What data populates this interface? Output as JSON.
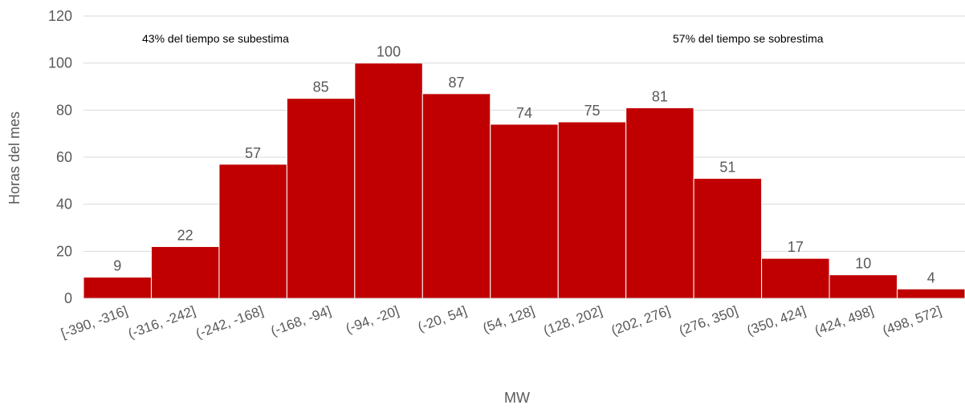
{
  "chart_data": {
    "type": "bar",
    "title": "",
    "xlabel": "MW",
    "ylabel": "Horas del mes",
    "ylim": [
      0,
      120
    ],
    "ytick_step": 20,
    "categories": [
      "[-390, -316]",
      "(-316, -242]",
      "(-242, -168]",
      "(-168, -94]",
      "(-94, -20]",
      "(-20, 54]",
      "(54, 128]",
      "(128, 202]",
      "(202, 276]",
      "(276, 350]",
      "(350, 424]",
      "(424, 498]",
      "(498, 572]"
    ],
    "values": [
      9,
      22,
      57,
      85,
      100,
      87,
      74,
      75,
      81,
      51,
      17,
      10,
      4
    ],
    "bar_color": "#C00000",
    "grid": true,
    "gap": "none (histogram)",
    "annotations": [
      {
        "text": "43% del tiempo se subestima",
        "position": "upper-left"
      },
      {
        "text": "57% del tiempo se sobrestima",
        "position": "upper-right"
      }
    ]
  }
}
